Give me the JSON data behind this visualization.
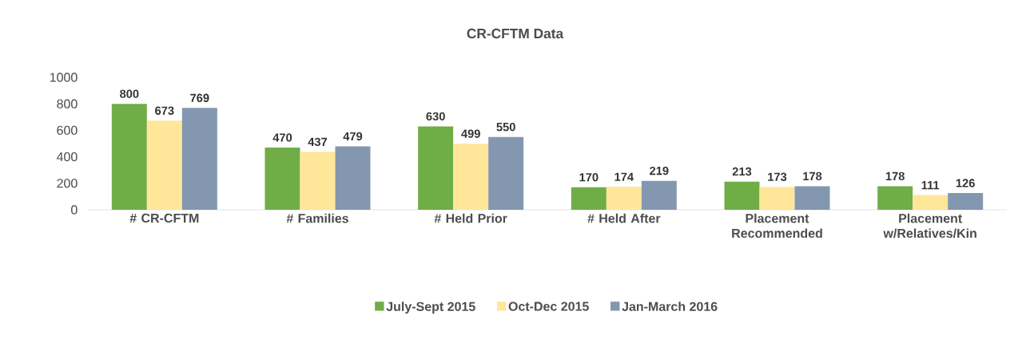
{
  "chart_data": {
    "type": "bar",
    "title": "CR-CFTM Data",
    "categories": [
      "# CR-CFTM",
      "# Families",
      "# Held Prior",
      "# Held After",
      "Placement Recommended",
      "Placement w/Relatives/Kin"
    ],
    "series": [
      {
        "name": "July-Sept 2015",
        "color": "#70ad47",
        "values": [
          800,
          470,
          630,
          170,
          213,
          178
        ]
      },
      {
        "name": "Oct-Dec 2015",
        "color": "#ffe699",
        "values": [
          673,
          437,
          499,
          174,
          173,
          111
        ]
      },
      {
        "name": "Jan-March 2016",
        "color": "#8497b0",
        "values": [
          769,
          479,
          550,
          219,
          178,
          126
        ]
      }
    ],
    "ylim": [
      0,
      1000
    ],
    "yticks": [
      0,
      200,
      400,
      600,
      800,
      1000
    ],
    "data_labels": true,
    "legend": "bottom"
  }
}
